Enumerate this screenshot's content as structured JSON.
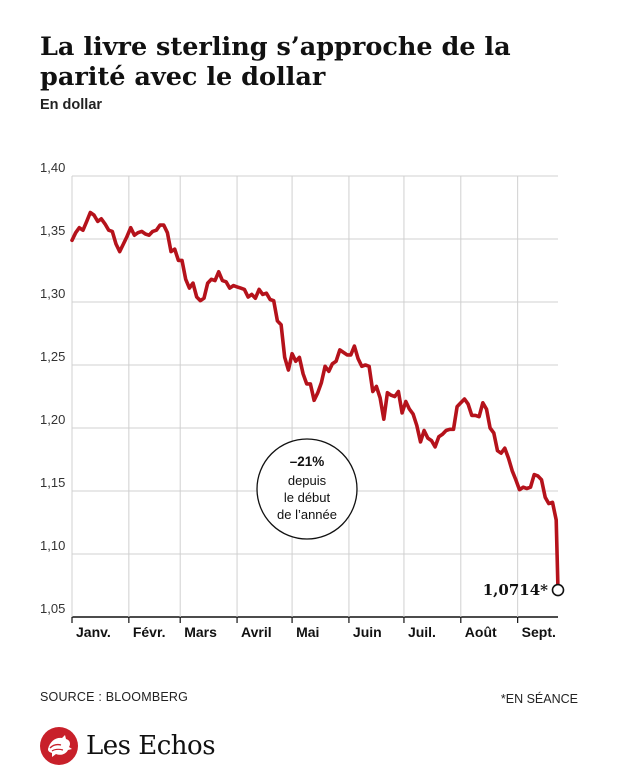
{
  "title": "La livre sterling s’approche de la parité avec le dollar",
  "subtitle": "En dollar",
  "source": "SOURCE : BLOOMBERG",
  "footnote": "*EN SÉANCE",
  "brand": {
    "name": "Les Echos",
    "logo_icon": "rooster-logo-icon",
    "logo_color": "#c8202a"
  },
  "colors": {
    "line": "#b5121b",
    "grid": "#d0d0d0",
    "axis": "#111111"
  },
  "chart_data": {
    "type": "line",
    "xlabel": "",
    "ylabel": "",
    "ylim": [
      1.05,
      1.4
    ],
    "y_ticks": [
      "1,40",
      "1,35",
      "1,30",
      "1,25",
      "1,20",
      "1,15",
      "1,10",
      "1,05"
    ],
    "y_tick_values": [
      1.4,
      1.35,
      1.3,
      1.25,
      1.2,
      1.15,
      1.1,
      1.05
    ],
    "x_ticks": [
      "Janv.",
      "Févr.",
      "Mars",
      "Avril",
      "Mai",
      "Juin",
      "Juil.",
      "Août",
      "Sept."
    ],
    "x_tick_values": [
      "2022-01-01",
      "2022-02-01",
      "2022-03-01",
      "2022-04-01",
      "2022-05-01",
      "2022-06-01",
      "2022-07-01",
      "2022-08-01",
      "2022-09-01"
    ],
    "xlim": [
      "2022-01-01",
      "2022-09-23"
    ],
    "grid": true,
    "series": [
      {
        "x": [
          "2022-01-01",
          "2022-01-03",
          "2022-01-05",
          "2022-01-07",
          "2022-01-09",
          "2022-01-11",
          "2022-01-13",
          "2022-01-15",
          "2022-01-17",
          "2022-01-19",
          "2022-01-21",
          "2022-01-23",
          "2022-01-25",
          "2022-01-27",
          "2022-01-29",
          "2022-01-31",
          "2022-02-02",
          "2022-02-04",
          "2022-02-06",
          "2022-02-08",
          "2022-02-10",
          "2022-02-12",
          "2022-02-14",
          "2022-02-16",
          "2022-02-18",
          "2022-02-20",
          "2022-02-22",
          "2022-02-24",
          "2022-02-26",
          "2022-02-28",
          "2022-03-02",
          "2022-03-04",
          "2022-03-06",
          "2022-03-08",
          "2022-03-10",
          "2022-03-12",
          "2022-03-14",
          "2022-03-16",
          "2022-03-18",
          "2022-03-20",
          "2022-03-22",
          "2022-03-24",
          "2022-03-26",
          "2022-03-28",
          "2022-03-30",
          "2022-04-01",
          "2022-04-03",
          "2022-04-05",
          "2022-04-07",
          "2022-04-09",
          "2022-04-11",
          "2022-04-13",
          "2022-04-15",
          "2022-04-17",
          "2022-04-19",
          "2022-04-21",
          "2022-04-23",
          "2022-04-25",
          "2022-04-27",
          "2022-04-29",
          "2022-05-01",
          "2022-05-03",
          "2022-05-05",
          "2022-05-07",
          "2022-05-09",
          "2022-05-11",
          "2022-05-13",
          "2022-05-15",
          "2022-05-17",
          "2022-05-19",
          "2022-05-21",
          "2022-05-23",
          "2022-05-25",
          "2022-05-27",
          "2022-05-29",
          "2022-05-31",
          "2022-06-02",
          "2022-06-04",
          "2022-06-06",
          "2022-06-08",
          "2022-06-10",
          "2022-06-12",
          "2022-06-14",
          "2022-06-16",
          "2022-06-18",
          "2022-06-20",
          "2022-06-22",
          "2022-06-24",
          "2022-06-26",
          "2022-06-28",
          "2022-06-30",
          "2022-07-02",
          "2022-07-04",
          "2022-07-06",
          "2022-07-08",
          "2022-07-10",
          "2022-07-12",
          "2022-07-14",
          "2022-07-16",
          "2022-07-18",
          "2022-07-20",
          "2022-07-22",
          "2022-07-24",
          "2022-07-26",
          "2022-07-28",
          "2022-07-30",
          "2022-08-01",
          "2022-08-03",
          "2022-08-05",
          "2022-08-07",
          "2022-08-09",
          "2022-08-11",
          "2022-08-13",
          "2022-08-15",
          "2022-08-17",
          "2022-08-19",
          "2022-08-21",
          "2022-08-23",
          "2022-08-25",
          "2022-08-27",
          "2022-08-29",
          "2022-08-31",
          "2022-09-02",
          "2022-09-04",
          "2022-09-06",
          "2022-09-08",
          "2022-09-10",
          "2022-09-12",
          "2022-09-14",
          "2022-09-16",
          "2022-09-18",
          "2022-09-20",
          "2022-09-22",
          "2022-09-23"
        ],
        "y": [
          1.349,
          1.355,
          1.359,
          1.357,
          1.364,
          1.371,
          1.369,
          1.364,
          1.366,
          1.362,
          1.357,
          1.356,
          1.346,
          1.34,
          1.346,
          1.352,
          1.359,
          1.353,
          1.355,
          1.356,
          1.354,
          1.353,
          1.356,
          1.357,
          1.361,
          1.361,
          1.355,
          1.34,
          1.342,
          1.333,
          1.333,
          1.318,
          1.311,
          1.315,
          1.304,
          1.301,
          1.303,
          1.315,
          1.318,
          1.317,
          1.324,
          1.317,
          1.316,
          1.311,
          1.313,
          1.312,
          1.311,
          1.31,
          1.304,
          1.306,
          1.303,
          1.31,
          1.306,
          1.307,
          1.302,
          1.301,
          1.285,
          1.282,
          1.256,
          1.246,
          1.259,
          1.253,
          1.256,
          1.243,
          1.235,
          1.235,
          1.222,
          1.228,
          1.236,
          1.249,
          1.245,
          1.251,
          1.253,
          1.262,
          1.26,
          1.258,
          1.258,
          1.265,
          1.255,
          1.249,
          1.25,
          1.249,
          1.229,
          1.233,
          1.224,
          1.207,
          1.228,
          1.226,
          1.225,
          1.229,
          1.212,
          1.221,
          1.215,
          1.211,
          1.202,
          1.189,
          1.198,
          1.192,
          1.19,
          1.185,
          1.193,
          1.195,
          1.198,
          1.199,
          1.199,
          1.217,
          1.22,
          1.223,
          1.219,
          1.21,
          1.21,
          1.209,
          1.22,
          1.215,
          1.2,
          1.196,
          1.182,
          1.18,
          1.184,
          1.176,
          1.166,
          1.159,
          1.151,
          1.153,
          1.152,
          1.153,
          1.163,
          1.162,
          1.159,
          1.145,
          1.14,
          1.141,
          1.127,
          1.0714
        ]
      }
    ],
    "last_value_label": "1,0714*",
    "annotation": {
      "value": "–21%",
      "lines": [
        "depuis",
        "le début",
        "de l’année"
      ]
    }
  }
}
